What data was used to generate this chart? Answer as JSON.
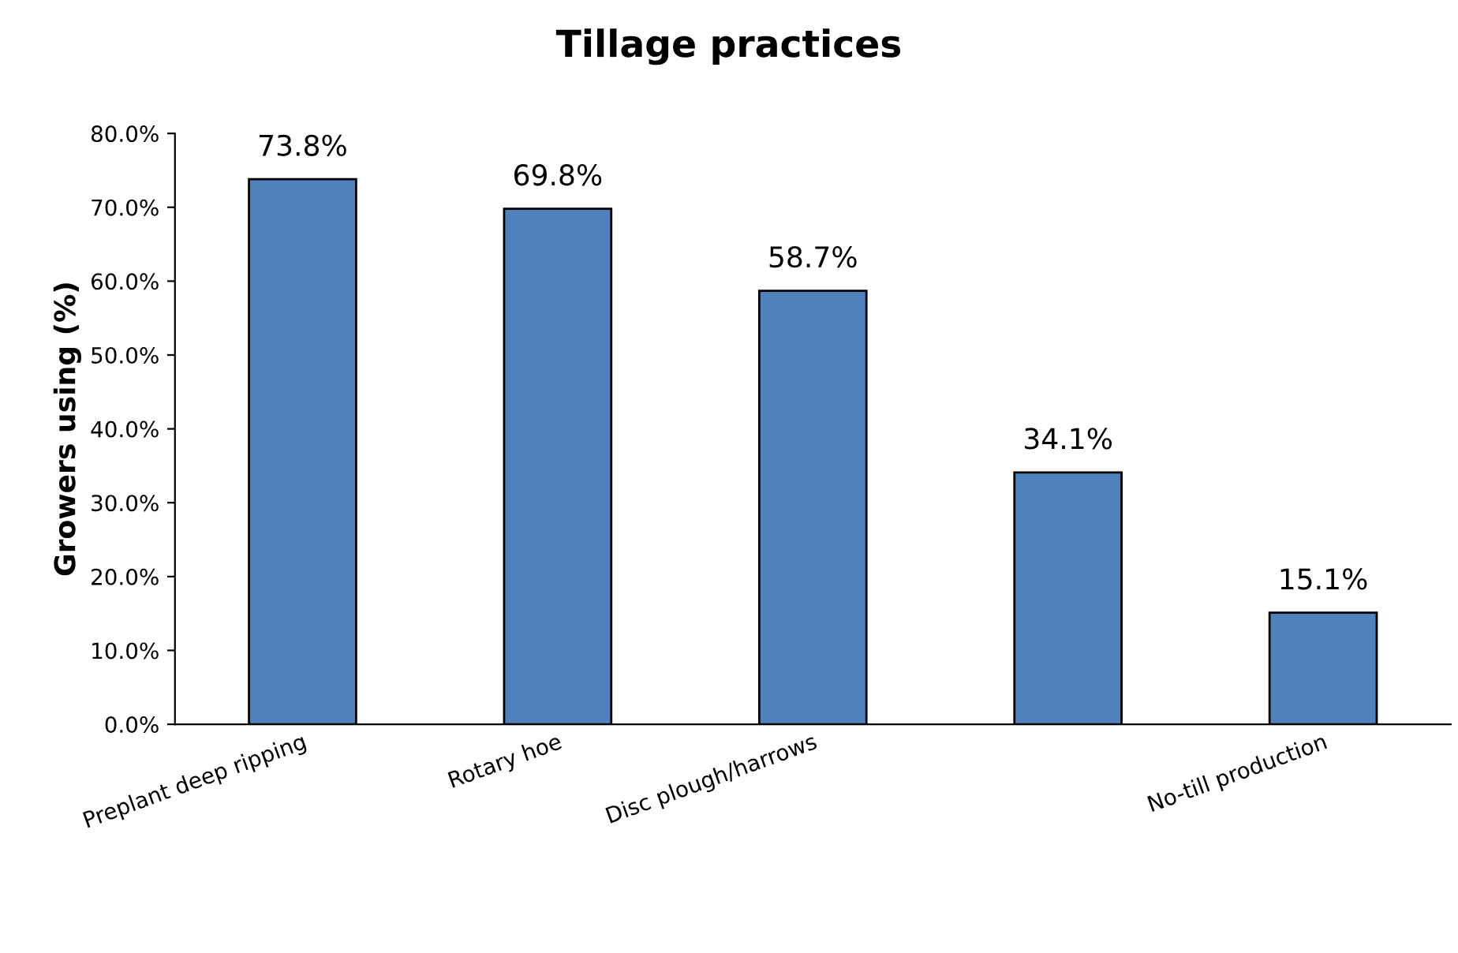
{
  "chart_data": {
    "type": "bar",
    "title": "Tillage practices",
    "ylabel": "Growers using (%)",
    "categories": [
      "Preplant deep ripping",
      "Rotary hoe",
      "Disc plough/harrows",
      null,
      "No-till production"
    ],
    "values": [
      73.8,
      69.8,
      58.7,
      34.1,
      15.1
    ],
    "value_labels": [
      "73.8%",
      "69.8%",
      "58.7%",
      "34.1%",
      "15.1%"
    ],
    "color": "#4f81bd",
    "ylim": [
      0,
      80
    ],
    "yticks": [
      {
        "value": 0,
        "label": "0.0%"
      },
      {
        "value": 10,
        "label": "10.0%"
      },
      {
        "value": 20,
        "label": "20.0%"
      },
      {
        "value": 30,
        "label": "30.0%"
      },
      {
        "value": 40,
        "label": "40.0%"
      },
      {
        "value": 50,
        "label": "50.0%"
      },
      {
        "value": 60,
        "label": "60.0%"
      },
      {
        "value": 70,
        "label": "70.0%"
      },
      {
        "value": 80,
        "label": "80.0%"
      }
    ],
    "grid": false,
    "legend": false
  }
}
